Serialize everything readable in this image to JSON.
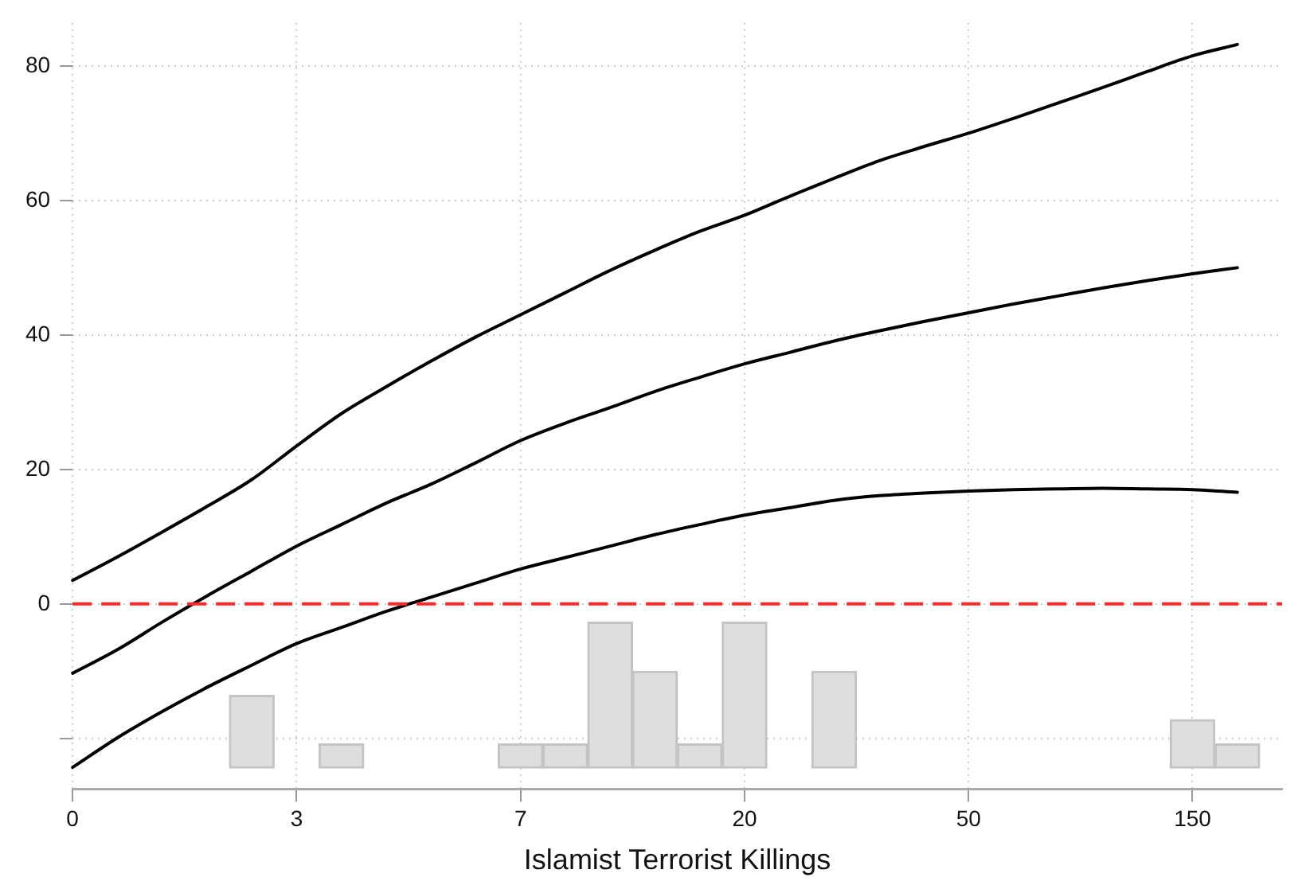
{
  "chart_data": {
    "type": "line",
    "xlabel": "Islamist Terrorist Killings",
    "categories": [
      "0",
      null,
      null,
      null,
      null,
      "3",
      null,
      null,
      null,
      null,
      "7",
      null,
      null,
      null,
      null,
      "20",
      null,
      null,
      null,
      null,
      "50",
      null,
      null,
      null,
      null,
      "150",
      null,
      null
    ],
    "ylim": [
      -27.5,
      86.4
    ],
    "yticks": [
      {
        "value": -20,
        "label": null
      },
      0,
      20,
      40,
      60,
      80
    ],
    "grid": true,
    "marker": "none",
    "line_style": "solid",
    "ref_lines": [
      {
        "axis": "y",
        "value": 0,
        "color": "#ff2a2a",
        "line_style": "dashed"
      }
    ],
    "series": [
      {
        "color": "#000000",
        "values": [
          3.5,
          7.0,
          10.7,
          14.5,
          18.5,
          23.5,
          28.3,
          32.3,
          36.1,
          39.7,
          43.0,
          46.3,
          49.6,
          52.6,
          55.4,
          57.8,
          60.6,
          63.3,
          65.9,
          68.0,
          70.0,
          72.2,
          74.5,
          76.8,
          79.2,
          81.5,
          83.2,
          null
        ]
      },
      {
        "color": "#000000",
        "values": [
          -10.3,
          -6.8,
          -2.7,
          1.2,
          4.9,
          8.6,
          11.8,
          15.0,
          17.8,
          21.0,
          24.3,
          26.9,
          29.2,
          31.6,
          33.7,
          35.7,
          37.4,
          39.1,
          40.6,
          42.0,
          43.3,
          44.6,
          45.8,
          47.0,
          48.1,
          49.1,
          50.0,
          null
        ]
      },
      {
        "color": "#000000",
        "values": [
          -24.3,
          -19.9,
          -16.0,
          -12.4,
          -9.1,
          -5.9,
          -3.5,
          -1.1,
          1.0,
          3.1,
          5.2,
          6.9,
          8.6,
          10.3,
          11.8,
          13.2,
          14.3,
          15.4,
          16.1,
          16.5,
          16.8,
          17.0,
          17.1,
          17.2,
          17.1,
          17.0,
          16.6,
          null
        ]
      },
      {
        "type": "bar",
        "color": "#dedede",
        "values": [
          null,
          null,
          null,
          null,
          10.8,
          null,
          3.6,
          null,
          null,
          null,
          3.6,
          3.6,
          21.7,
          14.4,
          3.6,
          21.7,
          null,
          14.4,
          null,
          null,
          null,
          null,
          null,
          null,
          null,
          7.2,
          3.6,
          null
        ],
        "base": [
          null,
          null,
          null,
          null,
          -24.4,
          null,
          -24.4,
          null,
          null,
          null,
          -24.4,
          -24.4,
          -24.4,
          -24.4,
          -24.4,
          -24.4,
          null,
          -24.4,
          null,
          null,
          null,
          null,
          null,
          null,
          null,
          -24.4,
          -24.4,
          null
        ]
      }
    ]
  }
}
